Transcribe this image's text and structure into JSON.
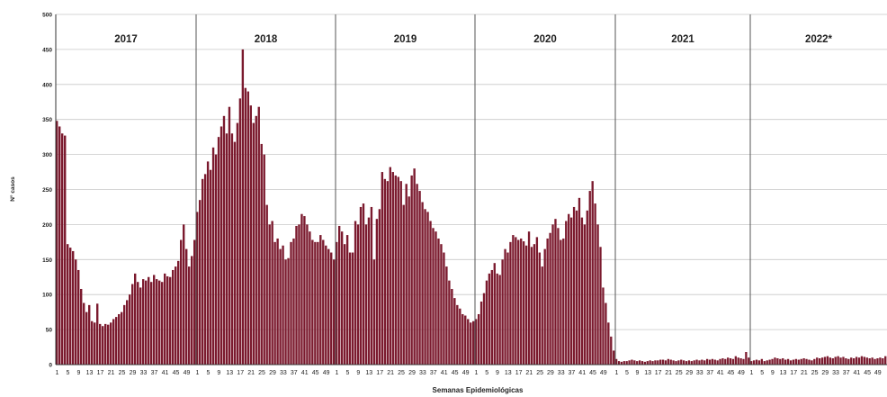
{
  "chart_data": {
    "type": "bar",
    "xlabel": "Semanas Epidemiológicas",
    "ylabel": "N° casos",
    "ylim": [
      0,
      500
    ],
    "y_ticks": [
      0,
      50,
      100,
      150,
      200,
      250,
      300,
      350,
      400,
      450,
      500
    ],
    "grid": true,
    "bar_color": "#7b1a2e",
    "years": [
      {
        "label": "2017",
        "weeks": 52,
        "values": [
          348,
          340,
          330,
          327,
          172,
          167,
          162,
          150,
          135,
          108,
          88,
          75,
          85,
          62,
          60,
          87,
          58,
          55,
          58,
          57,
          60,
          65,
          68,
          72,
          75,
          85,
          92,
          100,
          115,
          130,
          118,
          110,
          122,
          120,
          125,
          118,
          128,
          122,
          120,
          118,
          130,
          126,
          125,
          135,
          140,
          148,
          178,
          200,
          165,
          140,
          155,
          178
        ]
      },
      {
        "label": "2018",
        "weeks": 52,
        "values": [
          218,
          235,
          265,
          272,
          290,
          278,
          310,
          300,
          325,
          340,
          355,
          330,
          368,
          330,
          318,
          345,
          380,
          450,
          395,
          390,
          370,
          345,
          355,
          368,
          315,
          300,
          228,
          200,
          205,
          175,
          180,
          165,
          170,
          150,
          152,
          175,
          180,
          198,
          200,
          215,
          212,
          200,
          190,
          178,
          175,
          175,
          185,
          178,
          170,
          165,
          160,
          150
        ]
      },
      {
        "label": "2019",
        "weeks": 52,
        "values": [
          175,
          198,
          190,
          172,
          185,
          160,
          160,
          205,
          200,
          225,
          230,
          200,
          210,
          225,
          150,
          208,
          222,
          275,
          265,
          262,
          282,
          275,
          270,
          268,
          262,
          228,
          258,
          240,
          270,
          280,
          258,
          248,
          232,
          222,
          218,
          205,
          195,
          190,
          180,
          172,
          160,
          140,
          120,
          108,
          95,
          85,
          80,
          72,
          70,
          65,
          60,
          62
        ]
      },
      {
        "label": "2020",
        "weeks": 53,
        "values": [
          65,
          72,
          90,
          102,
          120,
          130,
          135,
          145,
          130,
          128,
          150,
          165,
          160,
          175,
          185,
          182,
          178,
          180,
          176,
          170,
          190,
          168,
          172,
          182,
          160,
          140,
          165,
          180,
          188,
          200,
          208,
          195,
          178,
          180,
          205,
          215,
          210,
          225,
          220,
          238,
          210,
          200,
          220,
          248,
          262,
          230,
          200,
          168,
          110,
          88,
          60,
          40,
          20
        ]
      },
      {
        "label": "2021",
        "weeks": 52,
        "values": [
          8,
          5,
          4,
          5,
          5,
          6,
          7,
          6,
          5,
          6,
          5,
          4,
          5,
          6,
          5,
          6,
          6,
          7,
          7,
          6,
          8,
          7,
          6,
          5,
          6,
          7,
          6,
          5,
          6,
          5,
          6,
          7,
          6,
          7,
          6,
          8,
          7,
          8,
          7,
          6,
          8,
          9,
          8,
          10,
          9,
          8,
          12,
          10,
          9,
          8,
          18,
          10
        ]
      },
      {
        "label": "2022*",
        "weeks": 52,
        "values": [
          5,
          6,
          7,
          6,
          8,
          5,
          6,
          7,
          8,
          10,
          9,
          8,
          9,
          7,
          8,
          6,
          7,
          8,
          7,
          8,
          9,
          8,
          7,
          6,
          8,
          10,
          9,
          10,
          11,
          12,
          10,
          9,
          11,
          12,
          10,
          11,
          9,
          8,
          10,
          9,
          11,
          10,
          12,
          11,
          10,
          9,
          10,
          8,
          9,
          10,
          9,
          12
        ]
      }
    ],
    "year_labels_positions": "top-of-each-section",
    "x_tick_labels": [
      "1",
      "5",
      "9",
      "13",
      "17",
      "21",
      "25",
      "29",
      "33",
      "37",
      "41",
      "45",
      "49"
    ]
  }
}
